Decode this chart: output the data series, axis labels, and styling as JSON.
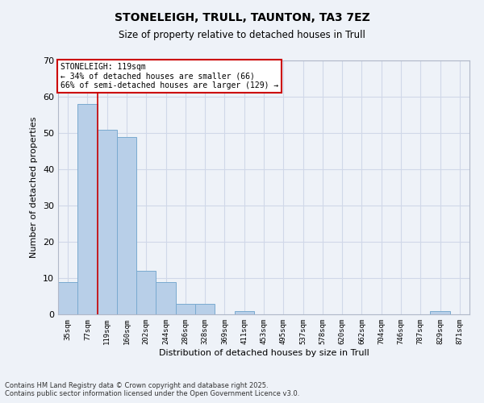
{
  "title1": "STONELEIGH, TRULL, TAUNTON, TA3 7EZ",
  "title2": "Size of property relative to detached houses in Trull",
  "xlabel": "Distribution of detached houses by size in Trull",
  "ylabel": "Number of detached properties",
  "categories": [
    "35sqm",
    "77sqm",
    "119sqm",
    "160sqm",
    "202sqm",
    "244sqm",
    "286sqm",
    "328sqm",
    "369sqm",
    "411sqm",
    "453sqm",
    "495sqm",
    "537sqm",
    "578sqm",
    "620sqm",
    "662sqm",
    "704sqm",
    "746sqm",
    "787sqm",
    "829sqm",
    "871sqm"
  ],
  "values": [
    9,
    58,
    51,
    49,
    12,
    9,
    3,
    3,
    0,
    1,
    0,
    0,
    0,
    0,
    0,
    0,
    0,
    0,
    0,
    1,
    0
  ],
  "bar_color": "#b8cfe8",
  "bar_edge_color": "#7aaad0",
  "redline_x": 1.5,
  "ylim": [
    0,
    70
  ],
  "yticks": [
    0,
    10,
    20,
    30,
    40,
    50,
    60,
    70
  ],
  "annotation_title": "STONELEIGH: 119sqm",
  "annotation_line1": "← 34% of detached houses are smaller (66)",
  "annotation_line2": "66% of semi-detached houses are larger (129) →",
  "annotation_box_color": "#ffffff",
  "annotation_box_edgecolor": "#cc0000",
  "grid_color": "#d0d8e8",
  "background_color": "#eef2f8",
  "footnote1": "Contains HM Land Registry data © Crown copyright and database right 2025.",
  "footnote2": "Contains public sector information licensed under the Open Government Licence v3.0."
}
